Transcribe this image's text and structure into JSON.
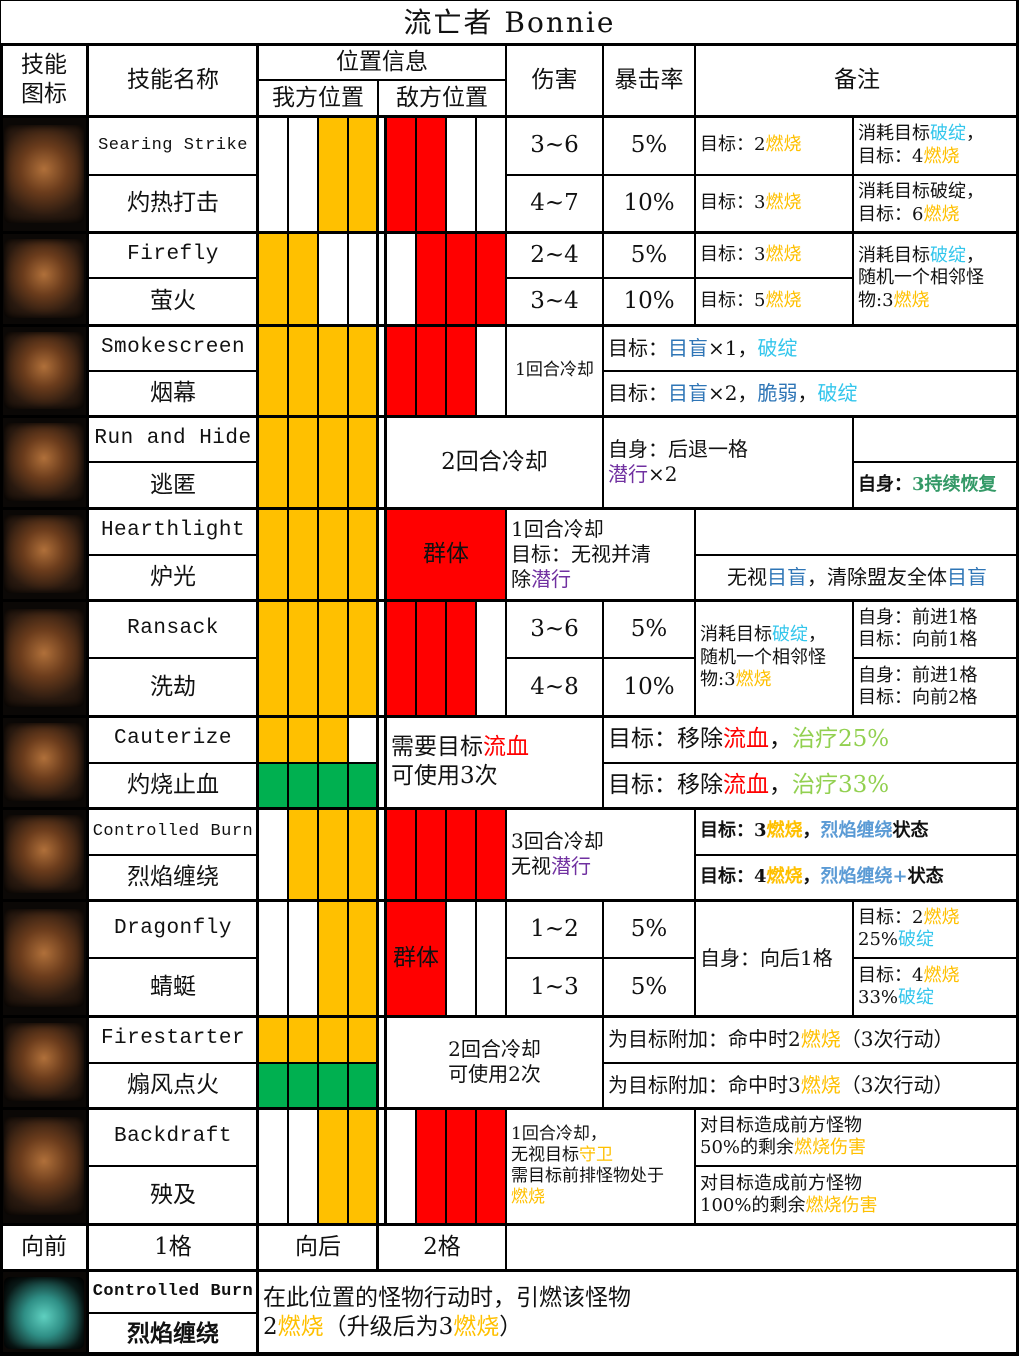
{
  "title": "流亡者 Bonnie",
  "colors": {
    "burn": "#FFC000",
    "crack": "#33C6EC",
    "blind": "#2E75B6",
    "stealth": "#7030A0",
    "bleed": "#FF0000",
    "heal": "#92D050",
    "regen": "#339966",
    "wrap": "#5B9BD5",
    "my_slot": "#FFC000",
    "my_slot_upgraded": "#00B050",
    "enemy_slot": "#FF0000"
  },
  "headers": {
    "icon": "技能\n图标",
    "name": "技能名称",
    "position": "位置信息",
    "my_pos": "我方位置",
    "enemy_pos": "敌方位置",
    "damage": "伤害",
    "crit": "暴击率",
    "notes": "备注"
  },
  "skills": [
    {
      "name_en": "Searing Strike",
      "name_cn": "灼热打击",
      "icon": "searing-strike-icon",
      "my": [
        0,
        0,
        1,
        1
      ],
      "enemy": [
        1,
        1,
        0,
        0
      ],
      "damage": [
        "3~6",
        "4~7"
      ],
      "crit": [
        "5%",
        "10%"
      ],
      "note1": [
        [
          "目标：2",
          [
            "燃烧",
            "burn"
          ]
        ],
        [
          "目标：3",
          [
            "燃烧",
            "burn"
          ]
        ]
      ],
      "note2": [
        [
          "消耗目标",
          [
            "破绽",
            "crack"
          ],
          "，\n目标：4",
          [
            "燃烧",
            "burn"
          ]
        ],
        [
          "消耗目标破绽，\n目标：6",
          [
            "燃烧",
            "burn"
          ]
        ]
      ]
    },
    {
      "name_en": "Firefly",
      "name_cn": "萤火",
      "icon": "firefly-icon",
      "my": [
        1,
        1,
        0,
        0
      ],
      "enemy": [
        0,
        1,
        1,
        1
      ],
      "damage": [
        "2~4",
        "3~4"
      ],
      "crit": [
        "5%",
        "10%"
      ],
      "note1": [
        [
          "目标：3",
          [
            "燃烧",
            "burn"
          ]
        ],
        [
          "目标：5",
          [
            "燃烧",
            "burn"
          ]
        ]
      ],
      "note2": [
        "消耗目标",
        [
          "破绽",
          "crack"
        ],
        "，\n随机一个相邻怪\n物:3",
        [
          "燃烧",
          "burn"
        ]
      ]
    },
    {
      "name_en": "Smokescreen",
      "name_cn": "烟幕",
      "icon": "smokescreen-icon",
      "my": [
        1,
        1,
        1,
        1
      ],
      "enemy": [
        1,
        1,
        1,
        0
      ],
      "cooldown": "1回合冷却",
      "notes": [
        [
          "目标：",
          [
            "目盲",
            "blind"
          ],
          "×1，",
          [
            "破绽",
            "crack"
          ]
        ],
        [
          "目标：",
          [
            "目盲",
            "blind"
          ],
          "×2，",
          [
            "脆弱",
            "blind"
          ],
          "，",
          [
            "破绽",
            "crack"
          ]
        ]
      ]
    },
    {
      "name_en": "Run and Hide",
      "name_cn": "逃匿",
      "icon": "run-and-hide-icon",
      "my": [
        1,
        1,
        1,
        1
      ],
      "cooldown": "2回合冷却",
      "note1": [
        "自身：后退一格\n",
        [
          "潜行",
          "stealth"
        ],
        "×2"
      ],
      "note2": [
        "自身：",
        [
          "3持续恢复",
          "regen"
        ]
      ]
    },
    {
      "name_en": "Hearthlight",
      "name_cn": "炉光",
      "icon": "hearthlight-icon",
      "my": [
        1,
        1,
        1,
        1
      ],
      "aoe": "群体",
      "cooldown": [
        "1回合冷却\n目标：无视并清\n除",
        [
          "潜行",
          "stealth"
        ]
      ],
      "note2": [
        "无视",
        [
          "目盲",
          "blind"
        ],
        "，清除盟友全体",
        [
          "目盲",
          "blind"
        ]
      ]
    },
    {
      "name_en": "Ransack",
      "name_cn": "洗劫",
      "icon": "ransack-icon",
      "my": [
        1,
        1,
        1,
        1
      ],
      "enemy": [
        1,
        1,
        1,
        0
      ],
      "damage": [
        "3~6",
        "4~8"
      ],
      "crit": [
        "5%",
        "10%"
      ],
      "note1": [
        "消耗目标",
        [
          "破绽",
          "crack"
        ],
        "，\n随机一个相邻怪\n物:3",
        [
          "燃烧",
          "burn"
        ]
      ],
      "note2": [
        "自身：前进1格\n目标：向前1格",
        "自身：前进1格\n目标：向前2格"
      ]
    },
    {
      "name_en": "Cauterize",
      "name_cn": "灼烧止血",
      "icon": "cauterize-icon",
      "my": [
        1,
        1,
        1,
        0
      ],
      "my_upgraded": [
        1,
        1,
        1,
        1
      ],
      "requirement": [
        "需要目标",
        [
          "流血",
          "bleed"
        ],
        "\n可使用3次"
      ],
      "notes": [
        [
          "目标：移除",
          [
            "流血",
            "bleed"
          ],
          "，",
          [
            "治疗25%",
            "heal"
          ]
        ],
        [
          "目标：移除",
          [
            "流血",
            "bleed"
          ],
          "，",
          [
            "治疗33%",
            "heal"
          ]
        ]
      ]
    },
    {
      "name_en": "Controlled Burn",
      "name_cn": "烈焰缠绕",
      "icon": "controlled-burn-icon",
      "my": [
        0,
        1,
        1,
        1
      ],
      "enemy": [
        1,
        1,
        1,
        1
      ],
      "cooldown": [
        "3回合冷却\n无视",
        [
          "潜行",
          "stealth"
        ]
      ],
      "notes": [
        [
          "目标：3",
          [
            "燃烧",
            "burn"
          ],
          "，",
          [
            "烈焰缠绕",
            "wrap"
          ],
          "状态"
        ],
        [
          "目标：4",
          [
            "燃烧",
            "burn"
          ],
          "，",
          [
            "烈焰缠绕+",
            "wrap"
          ],
          "状态"
        ]
      ]
    },
    {
      "name_en": "Dragonfly",
      "name_cn": "蜻蜓",
      "icon": "dragonfly-icon",
      "my": [
        0,
        0,
        1,
        1
      ],
      "enemy": [
        1,
        1,
        0,
        0
      ],
      "aoe": "群体",
      "damage": [
        "1~2",
        "1~3"
      ],
      "crit": [
        "5%",
        "5%"
      ],
      "note1": "自身：向后1格",
      "note2": [
        [
          "目标：2",
          [
            "燃烧",
            "burn"
          ],
          "\n25%",
          [
            "破绽",
            "crack"
          ]
        ],
        [
          "目标：4",
          [
            "燃烧",
            "burn"
          ],
          "\n33%",
          [
            "破绽",
            "crack"
          ]
        ]
      ]
    },
    {
      "name_en": "Firestarter",
      "name_cn": "煽风点火",
      "icon": "firestarter-icon",
      "my": [
        1,
        1,
        1,
        1
      ],
      "my_upgraded": [
        1,
        1,
        1,
        1
      ],
      "cooldown": "2回合冷却\n可使用2次",
      "notes": [
        [
          "为目标附加：命中时2",
          [
            "燃烧",
            "burn"
          ],
          "（3次行动）"
        ],
        [
          "为目标附加：命中时3",
          [
            "燃烧",
            "burn"
          ],
          "（3次行动）"
        ]
      ]
    },
    {
      "name_en": "Backdraft",
      "name_cn": "殃及",
      "icon": "backdraft-icon",
      "my": [
        0,
        0,
        1,
        1
      ],
      "enemy": [
        0,
        1,
        1,
        1
      ],
      "cooldown": [
        "1回合冷却，\n无视目标",
        [
          "守卫",
          "burn"
        ],
        "\n需目标前排怪物处于\n",
        [
          "燃烧",
          "burn"
        ]
      ],
      "notes": [
        [
          "对目标造成前方怪物\n50%的剩余",
          [
            "燃烧伤害",
            "burn"
          ]
        ],
        [
          "对目标造成前方怪物\n100%的剩余",
          [
            "燃烧伤害",
            "burn"
          ]
        ]
      ]
    }
  ],
  "movement": {
    "forward_label": "向前",
    "forward_value": "1格",
    "back_label": "向后",
    "back_value": "2格"
  },
  "camp_skill": {
    "name_en": "Controlled Burn",
    "name_cn": "烈焰缠绕",
    "icon": "blue-flame-icon",
    "desc": [
      "在此位置的怪物行动时，引燃该怪物\n2",
      [
        "燃烧",
        "burn"
      ],
      "（升级后为3",
      [
        "燃烧",
        "burn"
      ],
      "）"
    ]
  }
}
